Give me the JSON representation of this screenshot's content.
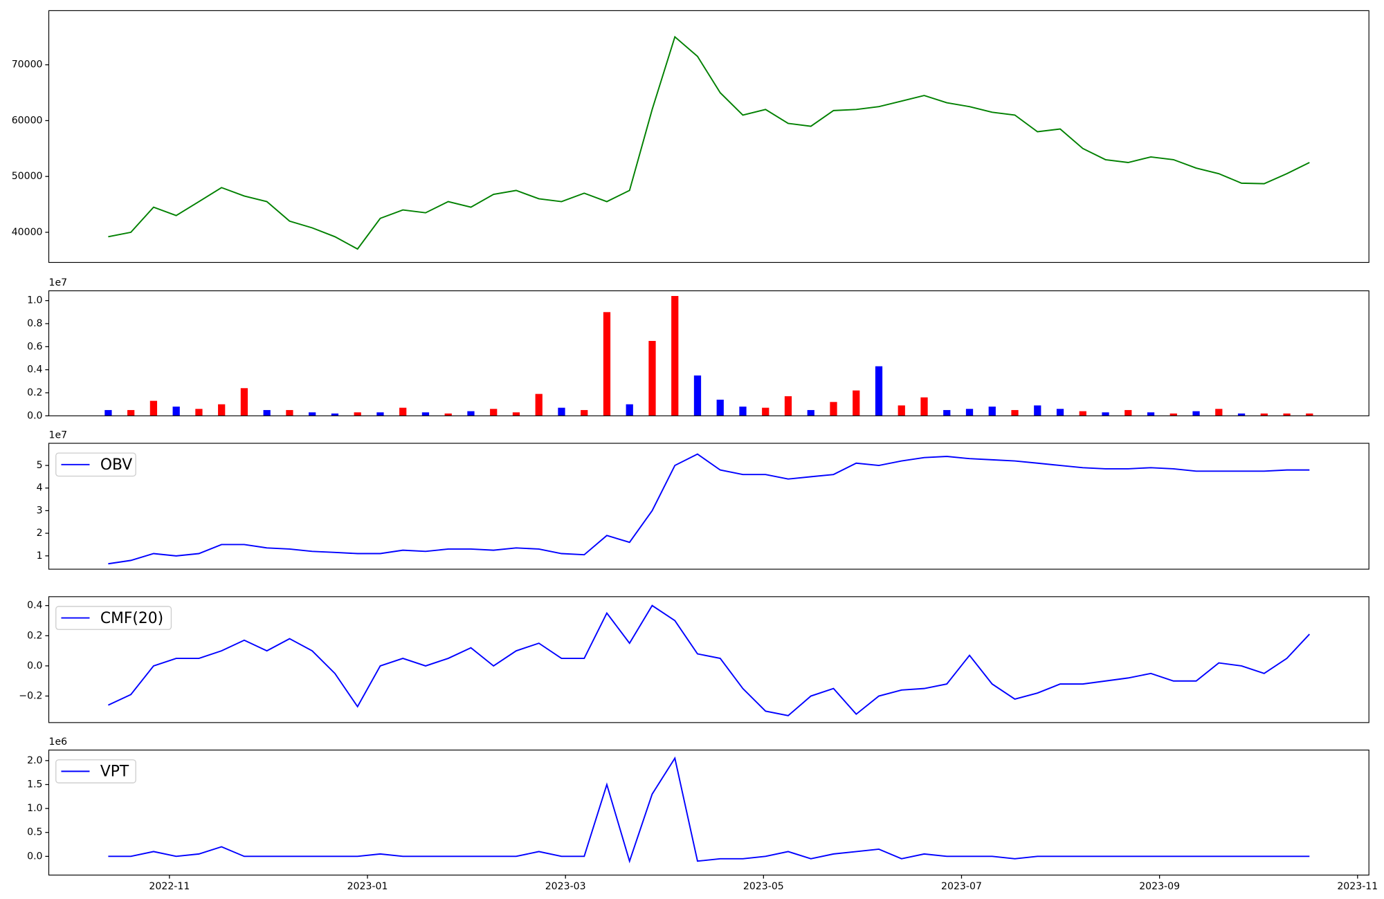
{
  "chart_data": [
    {
      "type": "line",
      "ylim": [
        34600,
        79700
      ],
      "yticks": [
        40000,
        50000,
        60000,
        70000
      ],
      "series": [
        {
          "color": "#008000",
          "values": [
            39200,
            40000,
            44500,
            43000,
            45500,
            48000,
            46500,
            45500,
            42000,
            40800,
            39200,
            37000,
            42500,
            44000,
            43500,
            45500,
            44500,
            46800,
            47500,
            46000,
            45500,
            47000,
            45500,
            47500,
            62000,
            75000,
            71500,
            65000,
            61000,
            62000,
            59500,
            59000,
            61800,
            62000,
            62500,
            63500,
            64500,
            63200,
            62500,
            61500,
            61000,
            58000,
            58500,
            55000,
            53000,
            52500,
            53500,
            53000,
            51500,
            50500,
            48800,
            48700,
            50500,
            52500
          ]
        }
      ]
    },
    {
      "type": "bar",
      "ylim": [
        0,
        1.085
      ],
      "offset_label": "1e7",
      "yticks": [
        {
          "value": 0,
          "label": "0.0"
        },
        {
          "value": 0.2,
          "label": "0.2"
        },
        {
          "value": 0.4,
          "label": "0.4"
        },
        {
          "value": 0.6,
          "label": "0.6"
        },
        {
          "value": 0.8,
          "label": "0.8"
        },
        {
          "value": 1.0,
          "label": "1.0"
        }
      ],
      "values": [
        0.05,
        0.05,
        0.13,
        0.08,
        0.06,
        0.1,
        0.24,
        0.05,
        0.05,
        0.03,
        0.02,
        0.03,
        0.03,
        0.07,
        0.03,
        0.02,
        0.04,
        0.06,
        0.03,
        0.19,
        0.07,
        0.05,
        0.9,
        0.1,
        0.65,
        1.04,
        0.35,
        0.14,
        0.08,
        0.07,
        0.17,
        0.05,
        0.12,
        0.22,
        0.43,
        0.09,
        0.16,
        0.05,
        0.06,
        0.08,
        0.05,
        0.09,
        0.06,
        0.04,
        0.03,
        0.05,
        0.03,
        0.02,
        0.04,
        0.06,
        0.02,
        0.02,
        0.02,
        0.02
      ],
      "colors": [
        "blue",
        "red",
        "red",
        "blue",
        "red",
        "red",
        "red",
        "blue",
        "red",
        "blue",
        "blue",
        "red",
        "blue",
        "red",
        "blue",
        "red",
        "blue",
        "red",
        "red",
        "red",
        "blue",
        "red",
        "red",
        "blue",
        "red",
        "red",
        "blue",
        "blue",
        "blue",
        "red",
        "red",
        "blue",
        "red",
        "red",
        "blue",
        "red",
        "red",
        "blue",
        "blue",
        "blue",
        "red",
        "blue",
        "blue",
        "red",
        "blue",
        "red",
        "blue",
        "red",
        "blue",
        "red",
        "blue",
        "red",
        "red",
        "red"
      ]
    },
    {
      "type": "line",
      "ylim": [
        0.41,
        5.98
      ],
      "offset_label": "1e7",
      "yticks": [
        1,
        2,
        3,
        4,
        5
      ],
      "series": [
        {
          "name": "OBV",
          "color": "#0000ff",
          "values": [
            0.65,
            0.8,
            1.1,
            1.0,
            1.1,
            1.5,
            1.5,
            1.35,
            1.3,
            1.2,
            1.15,
            1.1,
            1.1,
            1.25,
            1.2,
            1.3,
            1.3,
            1.25,
            1.35,
            1.3,
            1.1,
            1.05,
            1.9,
            1.6,
            3.0,
            5.0,
            5.5,
            4.8,
            4.6,
            4.6,
            4.4,
            4.5,
            4.6,
            5.1,
            5.0,
            5.2,
            5.35,
            5.4,
            5.3,
            5.25,
            5.2,
            5.1,
            5.0,
            4.9,
            4.85,
            4.85,
            4.9,
            4.85,
            4.75,
            4.75,
            4.75,
            4.75,
            4.8,
            4.8
          ]
        }
      ]
    },
    {
      "type": "line",
      "ylim": [
        -0.376,
        0.459
      ],
      "yticks": [
        {
          "value": -0.2,
          "label": "−0.2"
        },
        {
          "value": 0,
          "label": "0.0"
        },
        {
          "value": 0.2,
          "label": "0.2"
        },
        {
          "value": 0.4,
          "label": "0.4"
        }
      ],
      "series": [
        {
          "name": "CMF(20)",
          "color": "#0000ff",
          "values": [
            -0.26,
            -0.19,
            0.0,
            0.05,
            0.05,
            0.1,
            0.17,
            0.1,
            0.18,
            0.1,
            -0.05,
            -0.27,
            0.0,
            0.05,
            0.0,
            0.05,
            0.12,
            0.0,
            0.1,
            0.15,
            0.05,
            0.05,
            0.35,
            0.15,
            0.4,
            0.3,
            0.08,
            0.05,
            -0.15,
            -0.3,
            -0.33,
            -0.2,
            -0.15,
            -0.32,
            -0.2,
            -0.16,
            -0.15,
            -0.12,
            0.07,
            -0.12,
            -0.22,
            -0.18,
            -0.12,
            -0.12,
            -0.1,
            -0.08,
            -0.05,
            -0.1,
            -0.1,
            0.02,
            0.0,
            -0.05,
            0.05,
            0.21
          ]
        }
      ]
    },
    {
      "type": "line",
      "ylim": [
        -0.39,
        2.22
      ],
      "offset_label": "1e6",
      "yticks": [
        {
          "value": 0,
          "label": "0.0"
        },
        {
          "value": 0.5,
          "label": "0.5"
        },
        {
          "value": 1.0,
          "label": "1.0"
        },
        {
          "value": 1.5,
          "label": "1.5"
        },
        {
          "value": 2.0,
          "label": "2.0"
        }
      ],
      "x_tick_labels": [
        "2022-11",
        "2023-01",
        "2023-03",
        "2023-05",
        "2023-07",
        "2023-09",
        "2023-11"
      ],
      "series": [
        {
          "name": "VPT",
          "color": "#0000ff",
          "values": [
            0.0,
            0.0,
            0.1,
            0.0,
            0.05,
            0.2,
            0.0,
            0.0,
            0.0,
            0.0,
            0.0,
            0.0,
            0.05,
            0.0,
            0.0,
            0.0,
            0.0,
            0.0,
            0.0,
            0.1,
            0.0,
            0.0,
            1.5,
            -0.1,
            1.3,
            2.05,
            -0.1,
            -0.05,
            -0.05,
            0.0,
            0.1,
            -0.05,
            0.05,
            0.1,
            0.15,
            -0.05,
            0.05,
            0.0,
            0.0,
            0.0,
            -0.05,
            0.0,
            0.0,
            0.0,
            0.0,
            0.0,
            0.0,
            0.0,
            0.0,
            0.0,
            0.0,
            0.0,
            0.0,
            0.0
          ]
        }
      ]
    }
  ]
}
